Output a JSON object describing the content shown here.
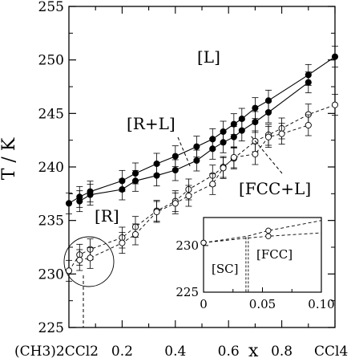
{
  "chart_data": [
    {
      "type": "line",
      "xlabel": "x",
      "ylabel": "T / K",
      "xlim": [
        0,
        1
      ],
      "ylim": [
        225,
        255
      ],
      "x_ticks": [
        0.2,
        0.4,
        0.6,
        0.8
      ],
      "x_tick_labels": [
        "0.2",
        "0.4",
        "0.6",
        "0.8"
      ],
      "y_ticks": [
        225,
        230,
        235,
        240,
        245,
        250,
        255
      ],
      "x_end_labels": {
        "left": "(CH3)2CCl2",
        "right": "CCl4"
      },
      "regions": [
        "[L]",
        "[R+L]",
        "[FCC+L]",
        "[R]"
      ],
      "series": [
        {
          "marker": "filled",
          "line": "solid",
          "x": [
            0.0,
            0.04,
            0.08,
            0.2,
            0.25,
            0.33,
            0.4,
            0.48,
            0.54,
            0.58,
            0.62,
            0.65,
            0.7,
            0.75,
            0.9,
            1.0
          ],
          "y": [
            236.6,
            237.2,
            237.7,
            238.7,
            239.4,
            240.3,
            241.0,
            241.9,
            242.6,
            243.3,
            244.0,
            244.5,
            245.5,
            246.2,
            248.6,
            250.3
          ]
        },
        {
          "marker": "filled",
          "line": "solid",
          "x": [
            0.04,
            0.08,
            0.2,
            0.25,
            0.33,
            0.4,
            0.48,
            0.54,
            0.58,
            0.62,
            0.65,
            0.7,
            0.75,
            0.9
          ],
          "y": [
            236.8,
            237.4,
            237.9,
            238.7,
            239.2,
            239.7,
            240.6,
            241.7,
            242.3,
            242.8,
            243.4,
            244.2,
            245.1,
            247.9
          ]
        },
        {
          "marker": "open",
          "line": "dashed",
          "x": [
            0.0,
            0.04,
            0.08,
            0.2,
            0.25,
            0.33,
            0.4,
            0.45,
            0.54,
            0.58,
            0.62,
            0.7,
            0.75,
            0.8,
            0.9,
            1.0
          ],
          "y": [
            230.3,
            231.8,
            232.3,
            233.4,
            234.4,
            235.9,
            236.8,
            237.9,
            239.2,
            240.0,
            240.8,
            242.4,
            243.0,
            243.6,
            244.9,
            245.8
          ]
        },
        {
          "marker": "open",
          "line": "dashed",
          "x": [
            0.04,
            0.08,
            0.2,
            0.25,
            0.33,
            0.4,
            0.45,
            0.54,
            0.58,
            0.62,
            0.7,
            0.75,
            0.8,
            0.9
          ],
          "y": [
            231.3,
            231.5,
            232.9,
            233.7,
            235.8,
            236.6,
            237.3,
            238.4,
            239.9,
            240.9,
            241.2,
            242.8,
            243.1,
            243.9
          ]
        }
      ]
    },
    {
      "type": "line",
      "xlim": [
        0,
        0.1
      ],
      "ylim": [
        225,
        233
      ],
      "x_ticks": [
        0,
        0.05,
        0.1
      ],
      "x_tick_labels": [
        "0",
        "0.05",
        "0.10"
      ],
      "y_ticks": [
        225,
        230
      ],
      "regions": [
        "[SC]",
        "[FCC]"
      ],
      "series": [
        {
          "marker": "open",
          "line": "dashed",
          "x": [
            0.0,
            0.037,
            0.055
          ],
          "y": [
            230.3,
            231.0,
            231.6
          ]
        },
        {
          "marker": "open",
          "line": "dashed",
          "x": [
            0.0,
            0.037,
            0.055
          ],
          "y": [
            230.3,
            230.8,
            231.0
          ]
        }
      ],
      "vlines_x": [
        0.036,
        0.038
      ]
    }
  ]
}
